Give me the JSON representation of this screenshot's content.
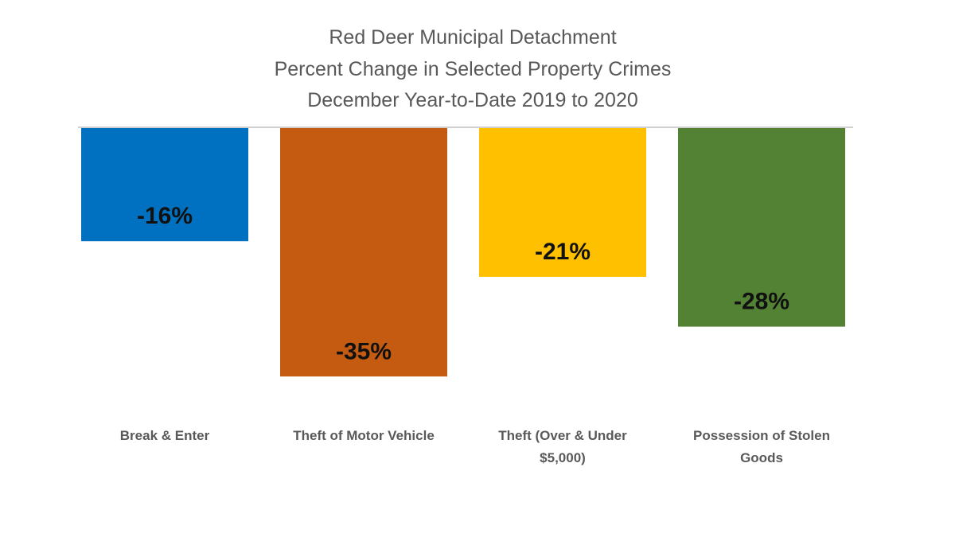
{
  "chart_data": {
    "type": "bar",
    "title": [
      "Red Deer Municipal Detachment",
      "Percent Change in Selected Property Crimes",
      "December Year-to-Date 2019 to 2020"
    ],
    "categories": [
      "Break & Enter",
      "Theft of Motor Vehicle",
      "Theft (Over & Under $5,000)",
      "Possession of Stolen Goods"
    ],
    "category_lines": [
      [
        "Break & Enter"
      ],
      [
        "Theft of Motor Vehicle"
      ],
      [
        "Theft (Over & Under",
        "$5,000)"
      ],
      [
        "Possession of Stolen",
        "Goods"
      ]
    ],
    "values": [
      -16,
      -35,
      -21,
      -28
    ],
    "data_labels": [
      "-16%",
      "-35%",
      "-21%",
      "-28%"
    ],
    "colors": [
      "#0070C0",
      "#C55A11",
      "#FFC000",
      "#548235"
    ],
    "ylabel": "",
    "xlabel": "",
    "unit": "%",
    "grid": false,
    "legend": "none"
  }
}
